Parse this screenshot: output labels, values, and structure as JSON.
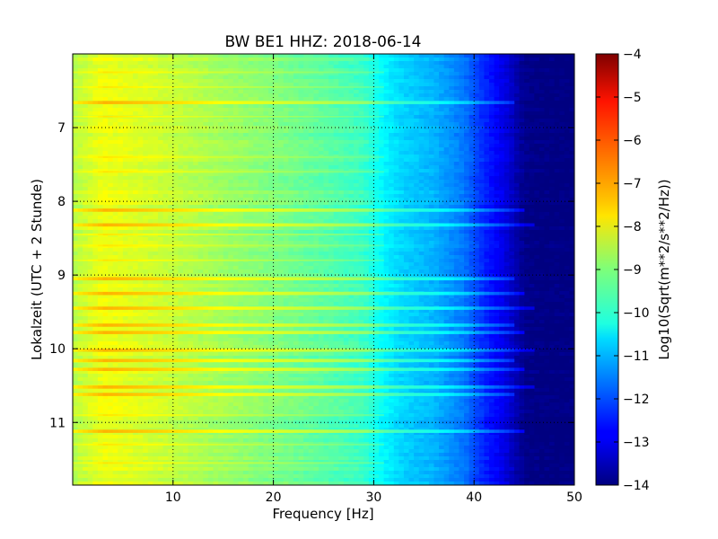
{
  "chart_data": {
    "type": "heatmap",
    "title": "BW BE1 HHZ: 2018-06-14",
    "xlabel": "Frequency [Hz]",
    "ylabel": "Lokalzeit (UTC + 2 Stunde)",
    "xlim": [
      0,
      50
    ],
    "ylim": [
      6.0,
      11.85
    ],
    "y_inverted": true,
    "grid": true,
    "x_ticks": [
      10,
      20,
      30,
      40,
      50
    ],
    "y_ticks": [
      7,
      8,
      9,
      10,
      11
    ],
    "colorbar": {
      "label": "Log10(Sqrt(m**2/s**2/Hz))",
      "range": [
        -14,
        -4
      ],
      "ticks": [
        -4,
        -5,
        -6,
        -7,
        -8,
        -9,
        -10,
        -11,
        -12,
        -13,
        -14
      ],
      "tick_labels": [
        "−4",
        "−5",
        "−6",
        "−7",
        "−8",
        "−9",
        "−10",
        "−11",
        "−12",
        "−13",
        "−14"
      ],
      "colormap": "jet"
    },
    "frequency_profile": {
      "frequency_hz": [
        0,
        3,
        8,
        15,
        20,
        25,
        29,
        31,
        33,
        36,
        39,
        41,
        43,
        45,
        47,
        50
      ],
      "log10_level": [
        -8.5,
        -7.9,
        -8.2,
        -8.7,
        -9.0,
        -9.35,
        -9.7,
        -10.3,
        -10.7,
        -11.0,
        -11.6,
        -12.4,
        -13.0,
        -13.9,
        -14.0,
        -14.0
      ]
    },
    "bright_band_hours": [
      6.66,
      8.12,
      8.32,
      9.05,
      9.25,
      9.45,
      9.68,
      9.78,
      10.02,
      10.16,
      10.28,
      10.52,
      10.62,
      11.12
    ],
    "background_line_hours": [
      6.25,
      6.45,
      6.85,
      7.4,
      7.6,
      8.45,
      8.6,
      8.8,
      10.9,
      11.3,
      11.55
    ]
  }
}
